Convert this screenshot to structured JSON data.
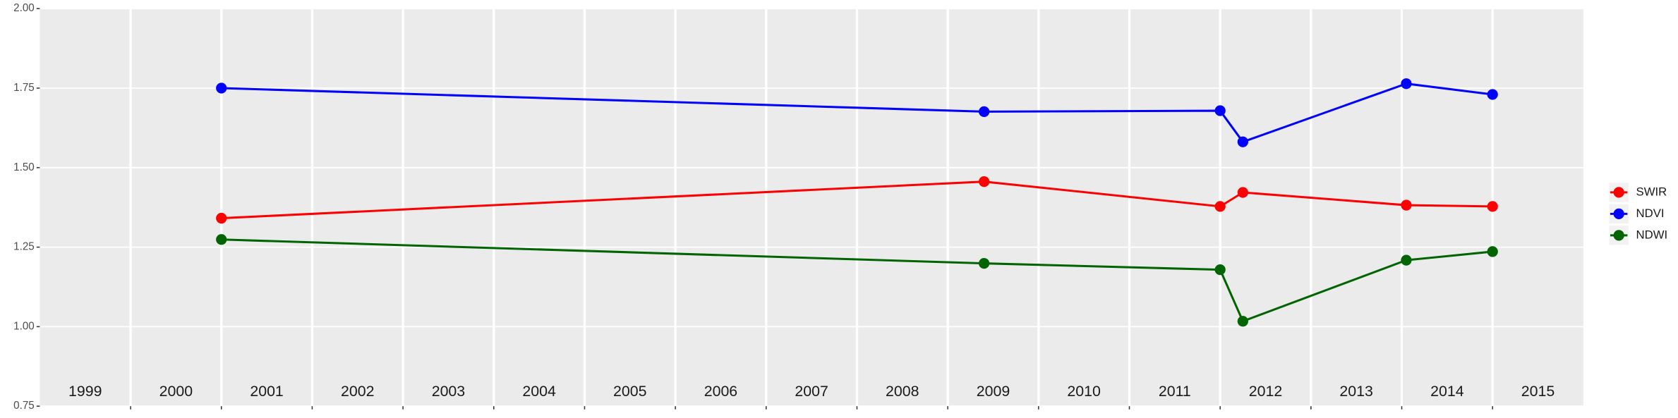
{
  "chart_data": {
    "type": "line",
    "x": [
      2001.0,
      2009.4,
      2012.0,
      2012.25,
      2014.05,
      2015.0
    ],
    "series": [
      {
        "name": "SWIR",
        "color": "#ff0000",
        "values": [
          1.341,
          1.456,
          1.378,
          1.422,
          1.382,
          1.378
        ]
      },
      {
        "name": "NDVI",
        "color": "#0000ff",
        "values": [
          1.75,
          1.676,
          1.679,
          1.581,
          1.764,
          1.73
        ]
      },
      {
        "name": "NDWI",
        "color": "#006400",
        "values": [
          1.274,
          1.199,
          1.179,
          1.017,
          1.209,
          1.236
        ]
      }
    ],
    "xlim": [
      1999.0,
      2016.0
    ],
    "xticks": [
      {
        "value": 1999.5,
        "label": "1999"
      },
      {
        "value": 2000.5,
        "label": "2000"
      },
      {
        "value": 2001.5,
        "label": "2001"
      },
      {
        "value": 2002.5,
        "label": "2002"
      },
      {
        "value": 2003.5,
        "label": "2003"
      },
      {
        "value": 2004.5,
        "label": "2004"
      },
      {
        "value": 2005.5,
        "label": "2005"
      },
      {
        "value": 2006.5,
        "label": "2006"
      },
      {
        "value": 2007.5,
        "label": "2007"
      },
      {
        "value": 2008.5,
        "label": "2008"
      },
      {
        "value": 2009.5,
        "label": "2009"
      },
      {
        "value": 2010.5,
        "label": "2010"
      },
      {
        "value": 2011.5,
        "label": "2011"
      },
      {
        "value": 2012.5,
        "label": "2012"
      },
      {
        "value": 2013.5,
        "label": "2013"
      },
      {
        "value": 2014.5,
        "label": "2014"
      },
      {
        "value": 2015.5,
        "label": "2015"
      }
    ],
    "ylim": [
      0.75,
      2.0
    ],
    "yticks": [
      {
        "value": 0.75,
        "label": "0.75"
      },
      {
        "value": 1.0,
        "label": "1.00"
      },
      {
        "value": 1.25,
        "label": "1.25"
      },
      {
        "value": 1.5,
        "label": "1.50"
      },
      {
        "value": 1.75,
        "label": "1.75"
      },
      {
        "value": 2.0,
        "label": "2.00"
      }
    ],
    "grid": true
  }
}
